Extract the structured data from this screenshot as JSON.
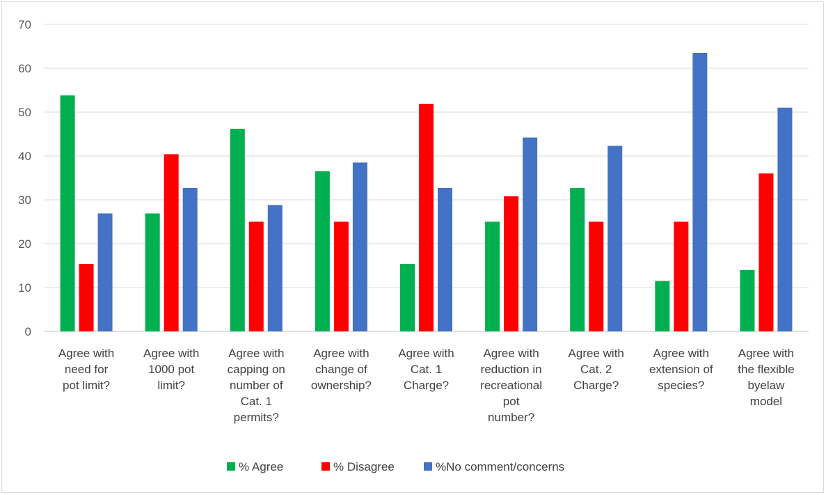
{
  "chart_data": {
    "type": "bar",
    "title": "",
    "xlabel": "",
    "ylabel": "",
    "ylim": [
      0,
      70
    ],
    "yticks": [
      0,
      10,
      20,
      30,
      40,
      50,
      60,
      70
    ],
    "grid": true,
    "legend_position": "bottom",
    "categories": [
      [
        "Agree with",
        "need for",
        "pot limit?"
      ],
      [
        "Agree with",
        "1000 pot",
        "limit?"
      ],
      [
        "Agree with",
        "capping on",
        "number of",
        "Cat. 1",
        "permits?"
      ],
      [
        "Agree with",
        "change of",
        "ownership?"
      ],
      [
        "Agree with",
        "Cat. 1",
        "Charge?"
      ],
      [
        "Agree with",
        "reduction in",
        "recreational",
        "pot",
        "number?"
      ],
      [
        "Agree with",
        "Cat. 2",
        "Charge?"
      ],
      [
        "Agree with",
        "extension of",
        "species?"
      ],
      [
        "Agree with",
        "the flexible",
        "byelaw",
        "model"
      ]
    ],
    "series": [
      {
        "name": "% Agree",
        "color": "#00b050",
        "values": [
          53.8,
          26.9,
          46.2,
          36.5,
          15.4,
          25.0,
          32.7,
          11.5,
          14.0
        ]
      },
      {
        "name": "% Disagree",
        "color": "#ff0000",
        "values": [
          15.4,
          40.4,
          25.0,
          25.0,
          51.9,
          30.8,
          25.0,
          25.0,
          36.0
        ]
      },
      {
        "name": "%No comment/concerns",
        "color": "#4472c4",
        "values": [
          26.9,
          32.7,
          28.8,
          38.5,
          32.7,
          44.2,
          42.3,
          63.5,
          51.0
        ]
      }
    ]
  }
}
